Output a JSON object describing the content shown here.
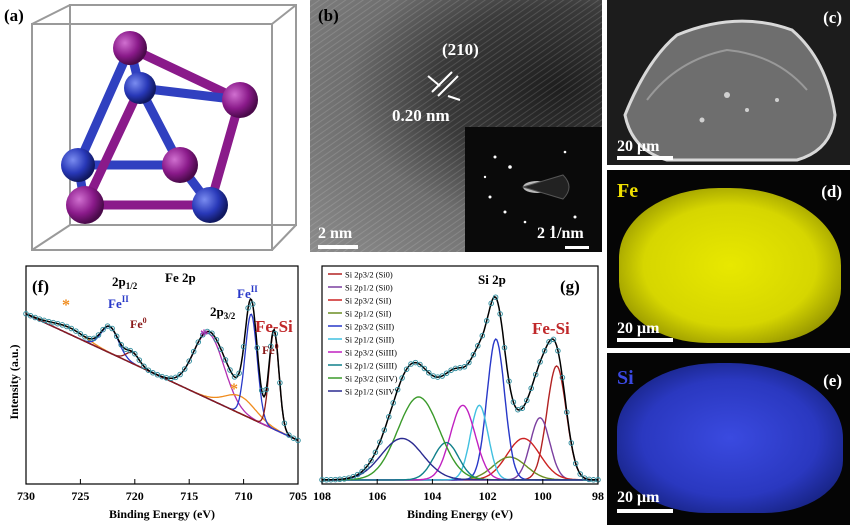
{
  "panels": {
    "a": {
      "label": "(a)"
    },
    "b": {
      "label": "(b)",
      "plane": "(210)",
      "spacing": "0.20 nm",
      "scale": "2 nm",
      "inset_scale": "2 1/nm"
    },
    "c": {
      "label": "(c)",
      "scale": "20 μm"
    },
    "d": {
      "label": "(d)",
      "element": "Fe",
      "scale": "20 μm",
      "color": "#e6e600"
    },
    "e": {
      "label": "(e)",
      "element": "Si",
      "scale": "20 μm",
      "color": "#2a3fd6"
    }
  },
  "chart_data": [
    {
      "type": "line",
      "panel": "(f)",
      "title": "Fe 2p",
      "xlabel": "Binding Energy (eV)",
      "ylabel": "Intensity (a.u.)",
      "xlim": [
        730,
        705
      ],
      "xticks": [
        "730",
        "725",
        "720",
        "715",
        "710",
        "705"
      ],
      "annotations": {
        "peak_2p12": "2p1/2",
        "peak_2p32": "2p3/2",
        "feII_1": "FeII",
        "fe0_1": "Fe0",
        "feII_2": "FeII",
        "fe0_2": "Fe0",
        "fesi": "Fe-Si",
        "star": "*"
      },
      "colors": {
        "envelope": "#000000",
        "background": "#808080",
        "orange": "#f08c1e",
        "magenta": "#b22eb2",
        "blue": "#2838c8",
        "darkred": "#8b1a1a",
        "points": "#2b8a9c"
      }
    },
    {
      "type": "line",
      "panel": "(g)",
      "title": "Si 2p",
      "xlabel": "Binding Energy (eV)",
      "xlim": [
        108,
        98
      ],
      "xticks": [
        "108",
        "106",
        "104",
        "102",
        "100",
        "98"
      ],
      "annotation": "Fe-Si",
      "legend": [
        {
          "text": "Si 2p3/2 (Si0)",
          "color": "#b22222"
        },
        {
          "text": "Si 2p1/2 (Si0)",
          "color": "#7b3fa0"
        },
        {
          "text": "Si 2p3/2 (SiI)",
          "color": "#cc2222"
        },
        {
          "text": "Si 2p1/2 (SiI)",
          "color": "#6b8e23"
        },
        {
          "text": "Si 2p3/2 (SiII)",
          "color": "#2838c8"
        },
        {
          "text": "Si 2p1/2 (SiII)",
          "color": "#40c0e0"
        },
        {
          "text": "Si 2p3/2 (SiIII)",
          "color": "#c020c0"
        },
        {
          "text": "Si 2p1/2 (SiIII)",
          "color": "#10808a"
        },
        {
          "text": "Si 2p3/2 (SiIV)",
          "color": "#3a9a2a"
        },
        {
          "text": "Si 2p1/2 (SiIV)",
          "color": "#2a2a90"
        }
      ],
      "components": [
        {
          "center": 99.5,
          "height": 0.55,
          "width": 0.35,
          "color": "#b22222"
        },
        {
          "center": 100.1,
          "height": 0.3,
          "width": 0.35,
          "color": "#7b3fa0"
        },
        {
          "center": 100.7,
          "height": 0.2,
          "width": 0.6,
          "color": "#cc2222"
        },
        {
          "center": 101.2,
          "height": 0.11,
          "width": 0.6,
          "color": "#6b8e23"
        },
        {
          "center": 101.7,
          "height": 0.68,
          "width": 0.32,
          "color": "#2838c8"
        },
        {
          "center": 102.3,
          "height": 0.36,
          "width": 0.32,
          "color": "#40c0e0"
        },
        {
          "center": 102.9,
          "height": 0.36,
          "width": 0.45,
          "color": "#c020c0"
        },
        {
          "center": 103.5,
          "height": 0.18,
          "width": 0.45,
          "color": "#10808a"
        },
        {
          "center": 104.5,
          "height": 0.4,
          "width": 0.75,
          "color": "#3a9a2a"
        },
        {
          "center": 105.1,
          "height": 0.2,
          "width": 0.75,
          "color": "#2a2a90"
        }
      ]
    }
  ]
}
